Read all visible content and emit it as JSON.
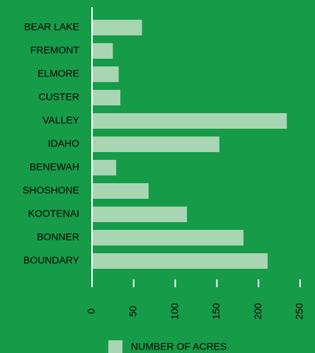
{
  "chart_data": {
    "type": "barh",
    "categories": [
      "BEAR LAKE",
      "FREMONT",
      "ELMORE",
      "CUSTER",
      "VALLEY",
      "IDAHO",
      "BENEWAH",
      "SHOSHONE",
      "KOOTENAI",
      "BONNER",
      "BOUNDARY"
    ],
    "series": [
      {
        "name": "NUMBER OF ACRES",
        "color": "#a9d6b2",
        "values": [
          60,
          25,
          32,
          34,
          234,
          153,
          29,
          68,
          114,
          182,
          211
        ]
      }
    ],
    "xlim": [
      0,
      250
    ],
    "xticks": [
      0,
      50,
      100,
      150,
      200,
      250
    ],
    "grid": false,
    "legend": "bottom"
  }
}
